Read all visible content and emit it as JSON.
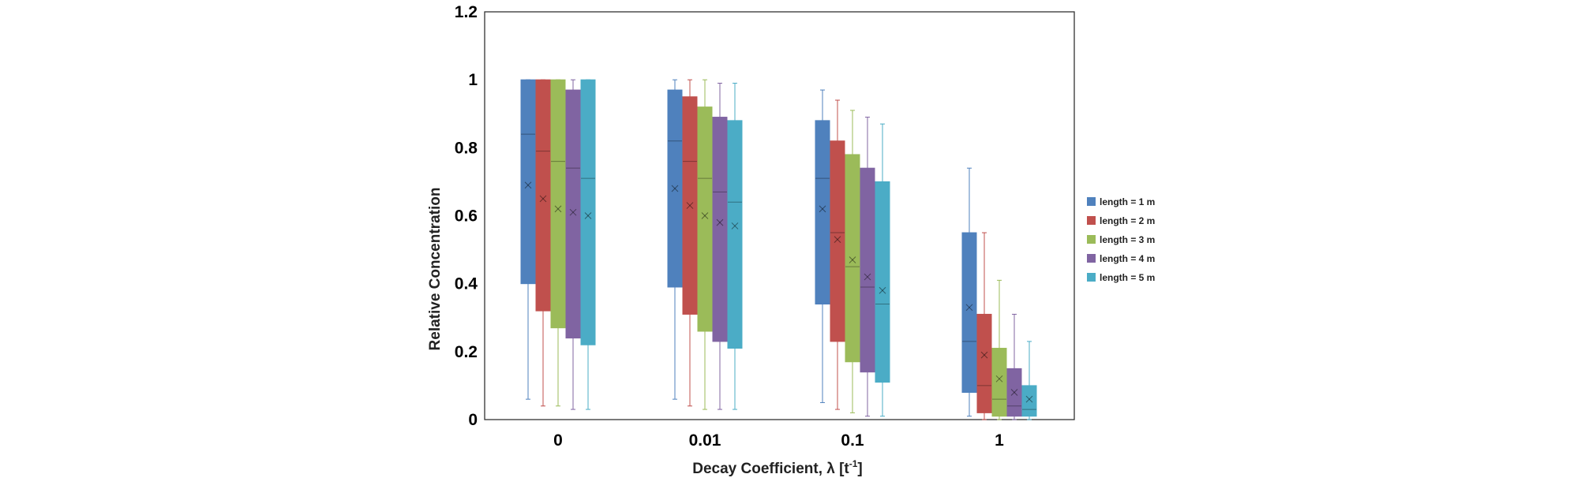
{
  "chart_data": {
    "type": "box",
    "title": "",
    "xlabel": "Decay Coefficient, λ [t",
    "xlabel_sup": "-1",
    "xlabel_end": "]",
    "ylabel": "Relative Concentration",
    "ylim": [
      0,
      1.2
    ],
    "yticks": [
      "0",
      "0.2",
      "0.4",
      "0.6",
      "0.8",
      "1",
      "1.2"
    ],
    "categories": [
      "0",
      "0.01",
      "0.1",
      "1"
    ],
    "grid": false,
    "legend_position": "right",
    "series": [
      {
        "name": "length = 1 m",
        "color": "#4F81BD",
        "boxes": [
          {
            "min": 0.06,
            "q1": 0.4,
            "median": 0.84,
            "mean": 0.69,
            "q3": 1.0,
            "max": 1.0
          },
          {
            "min": 0.06,
            "q1": 0.39,
            "median": 0.82,
            "mean": 0.68,
            "q3": 0.97,
            "max": 1.0
          },
          {
            "min": 0.05,
            "q1": 0.34,
            "median": 0.71,
            "mean": 0.62,
            "q3": 0.88,
            "max": 0.97
          },
          {
            "min": 0.01,
            "q1": 0.08,
            "median": 0.23,
            "mean": 0.33,
            "q3": 0.55,
            "max": 0.74
          }
        ]
      },
      {
        "name": "length = 2 m",
        "color": "#C0504D",
        "boxes": [
          {
            "min": 0.04,
            "q1": 0.32,
            "median": 0.79,
            "mean": 0.65,
            "q3": 1.0,
            "max": 1.0
          },
          {
            "min": 0.04,
            "q1": 0.31,
            "median": 0.76,
            "mean": 0.63,
            "q3": 0.95,
            "max": 1.0
          },
          {
            "min": 0.03,
            "q1": 0.23,
            "median": 0.55,
            "mean": 0.53,
            "q3": 0.82,
            "max": 0.94
          },
          {
            "min": 0.0,
            "q1": 0.02,
            "median": 0.1,
            "mean": 0.19,
            "q3": 0.31,
            "max": 0.55
          }
        ]
      },
      {
        "name": "length = 3 m",
        "color": "#9BBB59",
        "boxes": [
          {
            "min": 0.04,
            "q1": 0.27,
            "median": 0.76,
            "mean": 0.62,
            "q3": 1.0,
            "max": 1.0
          },
          {
            "min": 0.03,
            "q1": 0.26,
            "median": 0.71,
            "mean": 0.6,
            "q3": 0.92,
            "max": 1.0
          },
          {
            "min": 0.02,
            "q1": 0.17,
            "median": 0.45,
            "mean": 0.47,
            "q3": 0.78,
            "max": 0.91
          },
          {
            "min": 0.0,
            "q1": 0.01,
            "median": 0.06,
            "mean": 0.12,
            "q3": 0.21,
            "max": 0.41
          }
        ]
      },
      {
        "name": "length = 4 m",
        "color": "#8064A2",
        "boxes": [
          {
            "min": 0.03,
            "q1": 0.24,
            "median": 0.74,
            "mean": 0.61,
            "q3": 0.97,
            "max": 1.0
          },
          {
            "min": 0.03,
            "q1": 0.23,
            "median": 0.67,
            "mean": 0.58,
            "q3": 0.89,
            "max": 0.99
          },
          {
            "min": 0.01,
            "q1": 0.14,
            "median": 0.39,
            "mean": 0.42,
            "q3": 0.74,
            "max": 0.89
          },
          {
            "min": 0.0,
            "q1": 0.01,
            "median": 0.04,
            "mean": 0.08,
            "q3": 0.15,
            "max": 0.31
          }
        ]
      },
      {
        "name": "length = 5 m",
        "color": "#4BACC6",
        "boxes": [
          {
            "min": 0.03,
            "q1": 0.22,
            "median": 0.71,
            "mean": 0.6,
            "q3": 1.0,
            "max": 1.0
          },
          {
            "min": 0.03,
            "q1": 0.21,
            "median": 0.64,
            "mean": 0.57,
            "q3": 0.88,
            "max": 0.99
          },
          {
            "min": 0.01,
            "q1": 0.11,
            "median": 0.34,
            "mean": 0.38,
            "q3": 0.7,
            "max": 0.87
          },
          {
            "min": 0.0,
            "q1": 0.01,
            "median": 0.03,
            "mean": 0.06,
            "q3": 0.1,
            "max": 0.23
          }
        ]
      }
    ]
  }
}
